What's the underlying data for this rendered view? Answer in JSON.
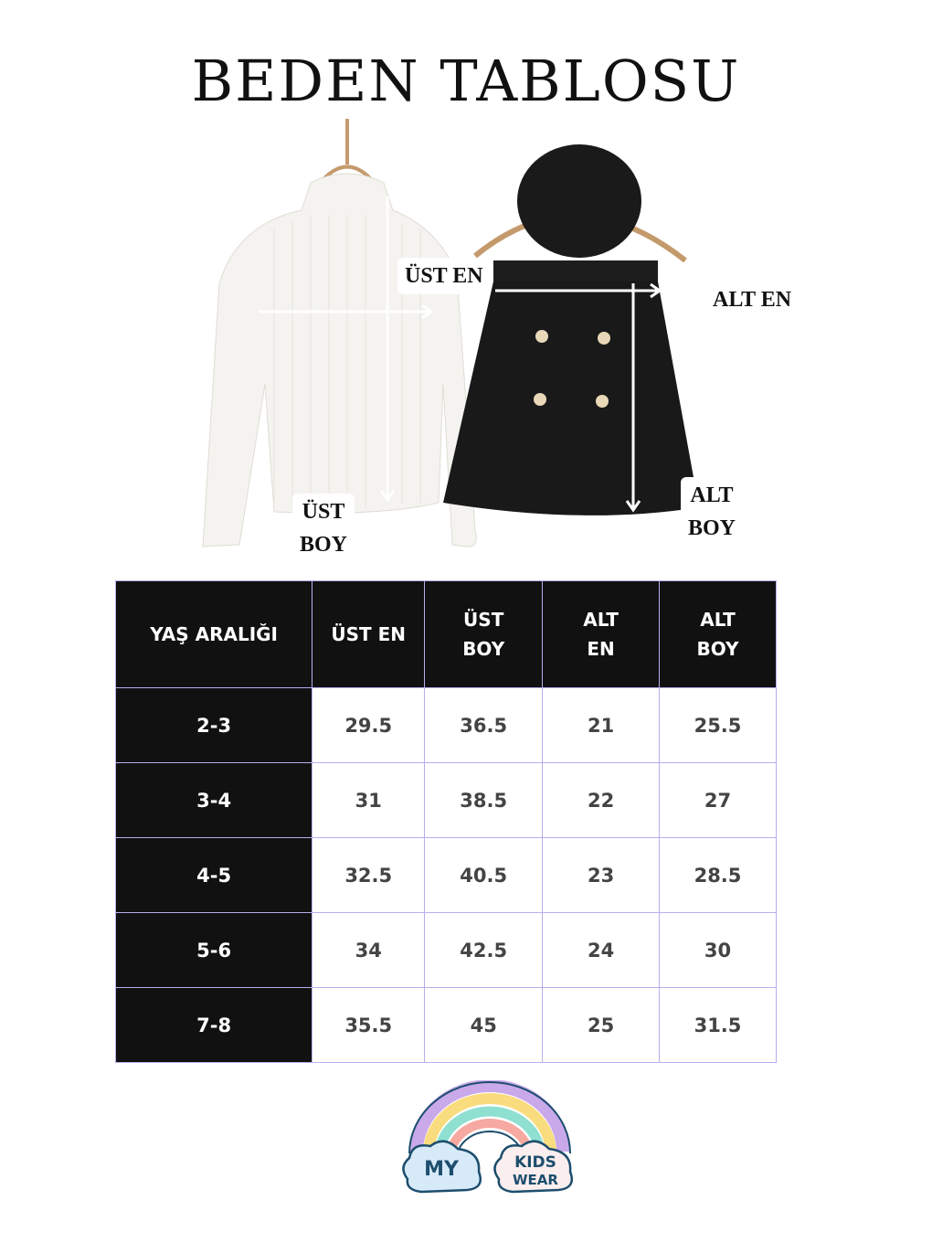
{
  "title": "BEDEN TABLOSU",
  "labels": {
    "ust_en": "ÜST EN",
    "ust_boy": [
      "ÜST",
      "BOY"
    ],
    "alt_en": "ALT EN",
    "alt_boy": [
      "ALT",
      "BOY"
    ]
  },
  "table": {
    "headers": [
      [
        "YAŞ ARALIĞI"
      ],
      [
        "ÜST EN"
      ],
      [
        "ÜST",
        "BOY"
      ],
      [
        "ALT",
        "EN"
      ],
      [
        "ALT",
        "BOY"
      ]
    ],
    "rows": [
      [
        "2-3",
        "29.5",
        "36.5",
        "21",
        "25.5"
      ],
      [
        "3-4",
        "31",
        "38.5",
        "22",
        "27"
      ],
      [
        "4-5",
        "32.5",
        "40.5",
        "23",
        "28.5"
      ],
      [
        "5-6",
        "34",
        "42.5",
        "24",
        "30"
      ],
      [
        "7-8",
        "35.5",
        "45",
        "25",
        "31.5"
      ]
    ]
  },
  "logo": {
    "text_left": "MY",
    "text_right": [
      "KIDS",
      "WEAR"
    ]
  },
  "colors": {
    "header_bg": "#111111",
    "grid": "#b8aef0",
    "rainbow": [
      "#c9a9ea",
      "#f9dc7e",
      "#8fe0d0",
      "#f6a9a0"
    ],
    "logo_text": "#1d4e6e"
  }
}
